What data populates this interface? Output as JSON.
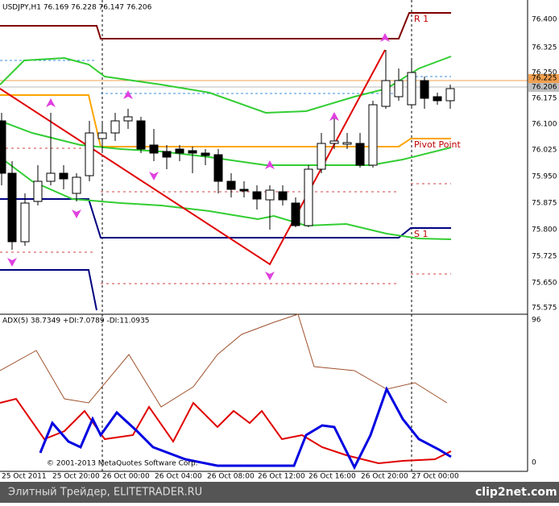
{
  "header": {
    "symbol_info": "USDJPY,H1  76.169 76.228 76.147 76.206"
  },
  "price_axis": {
    "labels": [
      "76.400",
      "76.325",
      "76.250",
      "76.175",
      "76.100",
      "76.025",
      "75.950",
      "75.875",
      "75.800",
      "75.725",
      "75.650",
      "75.575"
    ],
    "ask": "76.225",
    "bid": "76.206"
  },
  "chart_labels": {
    "r1": "R 1",
    "pivot": "Pivot Point",
    "s1": "S 1",
    "copyright": "© 2001-2013 MetaQuotes Software Corp."
  },
  "indicator": {
    "title": "ADX(5) 38.7349 +DI:7.0789 -DI:11.0935",
    "axis_top": "96",
    "axis_bottom": "0"
  },
  "time_axis": {
    "labels": [
      "25 Oct 2011",
      "25 Oct 20:00",
      "26 Oct 00:00",
      "26 Oct 04:00",
      "26 Oct 08:00",
      "26 Oct 12:00",
      "26 Oct 16:00",
      "26 Oct 20:00",
      "27 Oct 00:00"
    ]
  },
  "footer": {
    "left": "Элитный Трейдер, ELITETRADER.RU",
    "right": "clip2net.com"
  }
}
